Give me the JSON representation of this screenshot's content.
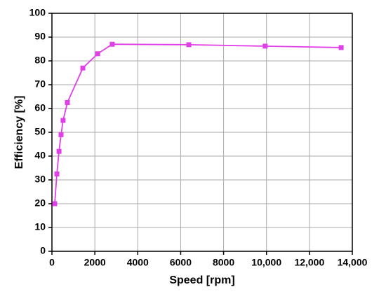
{
  "chart_data": {
    "type": "line",
    "x_label": "Speed [rpm]",
    "y_label": "Efficiency [%]",
    "x": [
      130,
      230,
      330,
      425,
      520,
      720,
      1440,
      2130,
      2810,
      6380,
      9940,
      13480
    ],
    "values": [
      20,
      32.5,
      42,
      49,
      55,
      62.5,
      77,
      83,
      87,
      86.8,
      86.2,
      85.6
    ],
    "color": "#e040e8",
    "xlim": [
      0,
      14000
    ],
    "xticks": [
      0,
      2000,
      4000,
      6000,
      8000,
      {
        "value": 10000,
        "label": "10,000"
      },
      {
        "value": 12000,
        "label": "12,000"
      },
      {
        "value": 14000,
        "label": "14,000"
      }
    ],
    "ylim": [
      0,
      100
    ],
    "yticks": [
      0,
      10,
      20,
      30,
      40,
      50,
      60,
      70,
      80,
      90,
      100
    ],
    "grid": true
  }
}
